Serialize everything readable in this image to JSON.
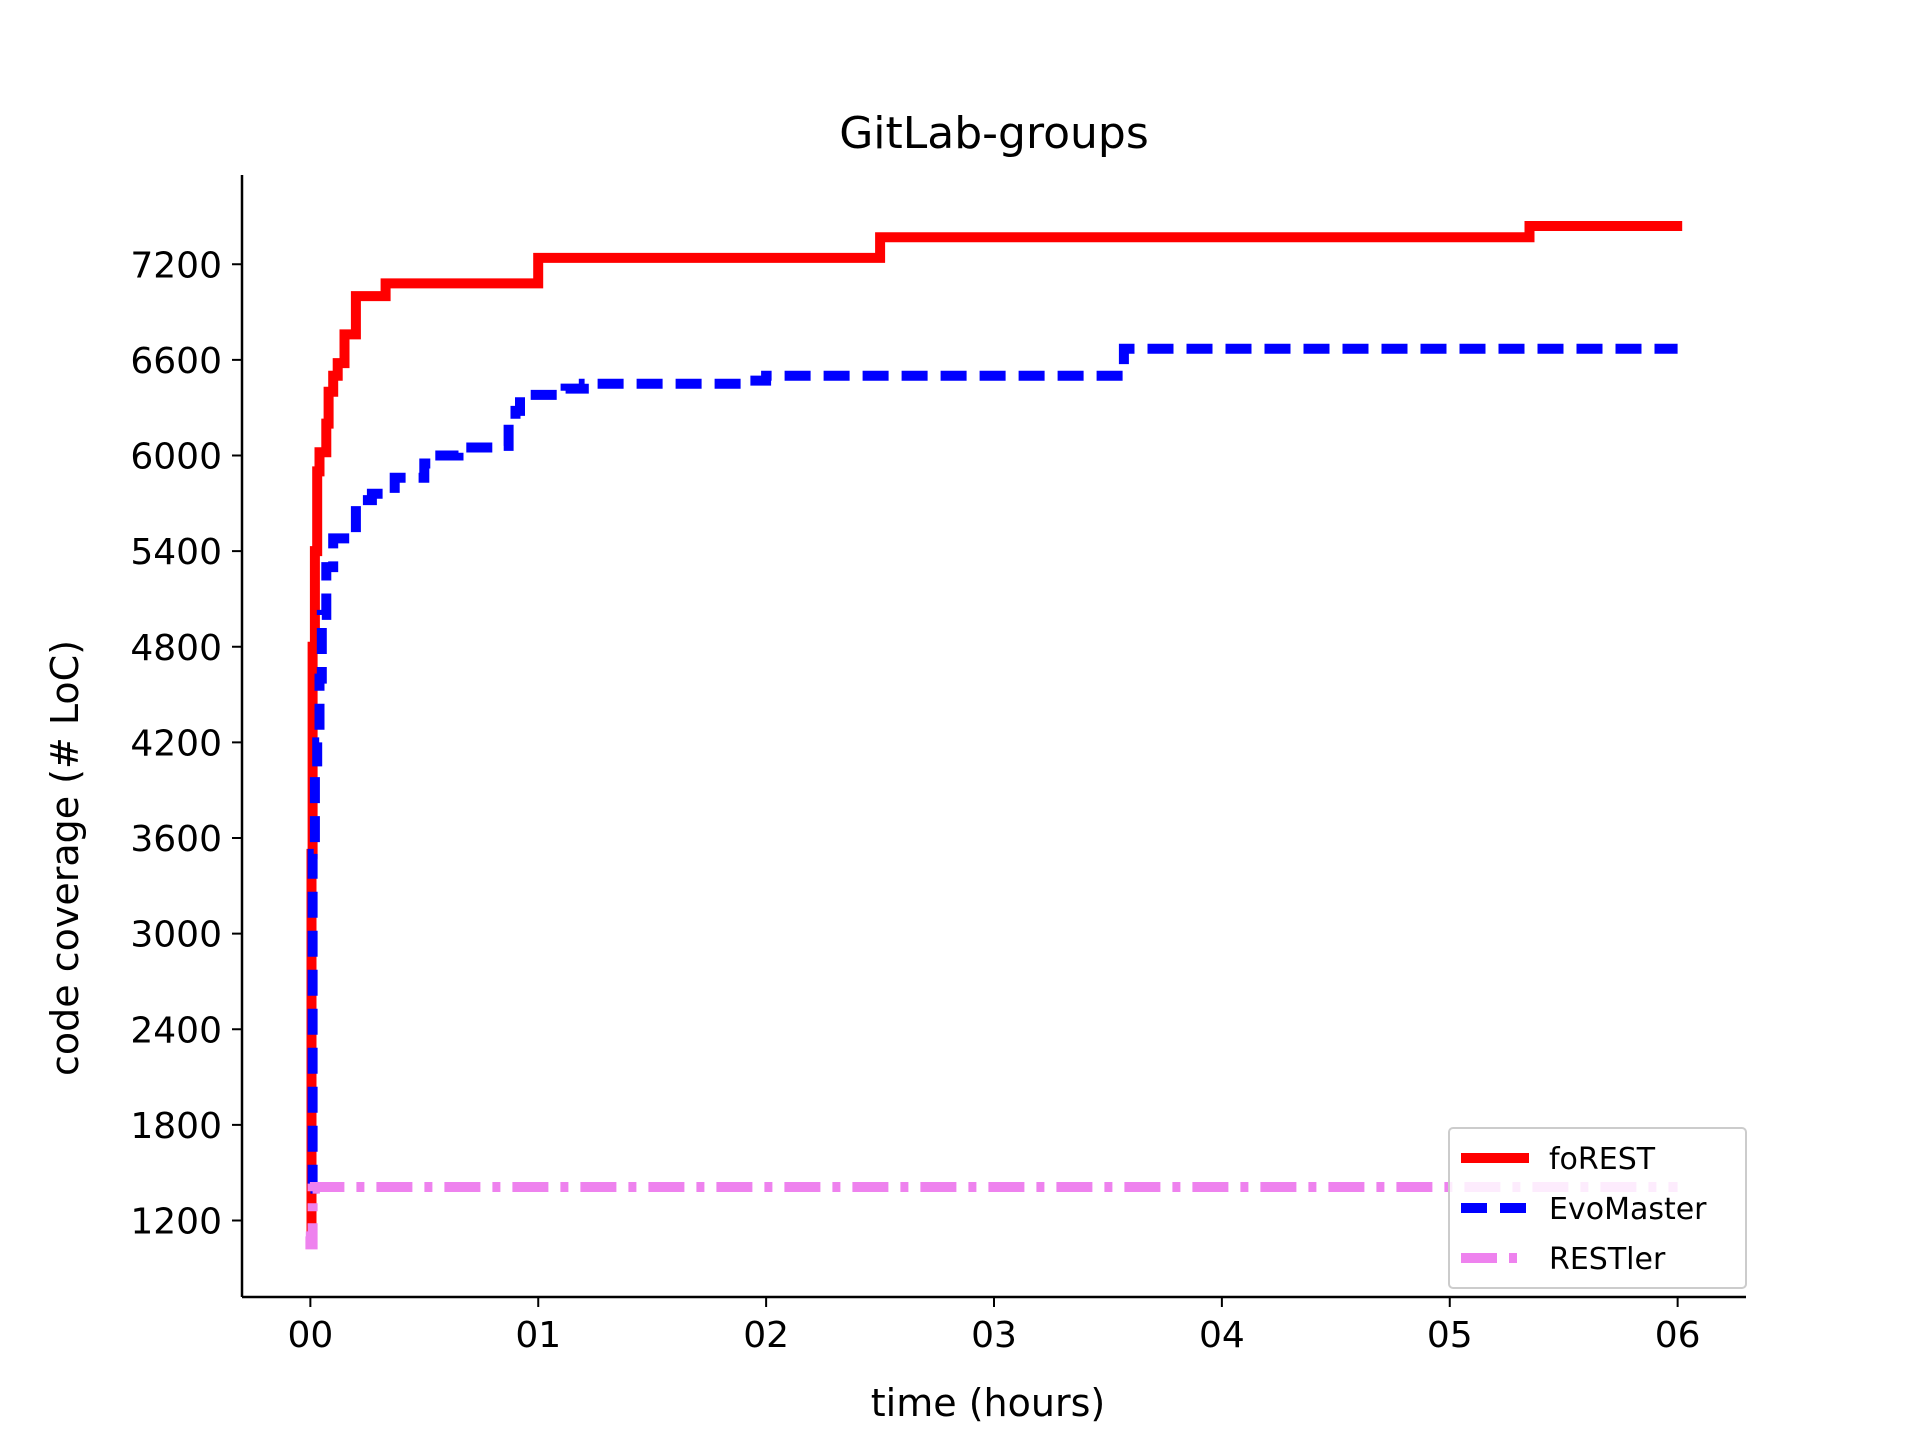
{
  "chart_data": {
    "type": "line",
    "title": "GitLab-groups",
    "xlabel": "time (hours)",
    "ylabel": "code coverage (# LoC)",
    "xlim": [
      -0.3,
      6.3
    ],
    "ylim": [
      720,
      7760
    ],
    "x_ticks": [
      0,
      1,
      2,
      3,
      4,
      5,
      6
    ],
    "x_tick_labels": [
      "00",
      "01",
      "02",
      "03",
      "04",
      "05",
      "06"
    ],
    "y_ticks": [
      1200,
      1800,
      2400,
      3000,
      3600,
      4200,
      4800,
      5400,
      6000,
      6600,
      7200
    ],
    "y_tick_labels": [
      "1200",
      "1800",
      "2400",
      "3000",
      "3600",
      "4200",
      "4800",
      "5400",
      "6000",
      "6600",
      "7200"
    ],
    "grid": false,
    "legend_position": "lower-right",
    "series": [
      {
        "name": "foREST",
        "color": "#ff0000",
        "style": "solid",
        "step": true,
        "x": [
          0,
          0.005,
          0.01,
          0.02,
          0.03,
          0.04,
          0.07,
          0.08,
          0.1,
          0.12,
          0.15,
          0.2,
          0.33,
          1.0,
          2.5,
          5.35,
          6.02
        ],
        "y": [
          1100,
          3500,
          4800,
          5400,
          5900,
          6020,
          6200,
          6400,
          6500,
          6580,
          6760,
          7000,
          7080,
          7240,
          7370,
          7440,
          7440
        ]
      },
      {
        "name": "EvoMaster",
        "color": "#0000ff",
        "style": "dashed",
        "step": true,
        "x": [
          0,
          0.01,
          0.02,
          0.03,
          0.04,
          0.05,
          0.07,
          0.1,
          0.17,
          0.2,
          0.27,
          0.37,
          0.5,
          0.57,
          0.65,
          0.8,
          0.87,
          0.9,
          0.92,
          1.12,
          1.2,
          1.9,
          2.0,
          3.5,
          3.57,
          6.0
        ],
        "y": [
          1400,
          3500,
          4000,
          4200,
          4600,
          5000,
          5300,
          5480,
          5480,
          5720,
          5760,
          5860,
          5950,
          6000,
          6050,
          6060,
          6200,
          6280,
          6380,
          6420,
          6450,
          6470,
          6500,
          6500,
          6670,
          6670
        ]
      },
      {
        "name": "RESTler",
        "color": "#ee82ee",
        "style": "dashdot",
        "step": true,
        "x": [
          -0.02,
          0.0,
          0.01,
          0.02,
          6.0
        ],
        "y": [
          1100,
          1050,
          1400,
          1410,
          1410
        ]
      }
    ]
  }
}
